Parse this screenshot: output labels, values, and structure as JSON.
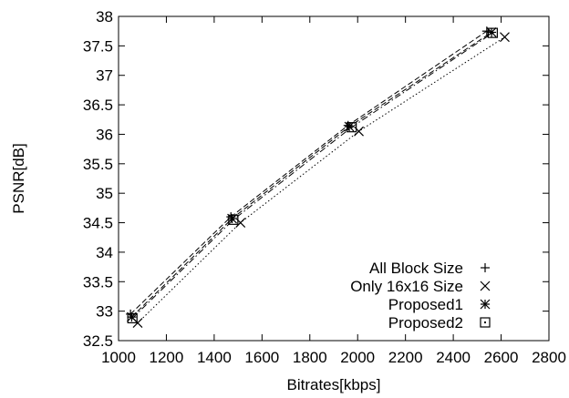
{
  "chart_data": {
    "type": "line",
    "title": "",
    "xlabel": "Bitrates[kbps]",
    "ylabel": "PSNR[dB]",
    "xlim": [
      1000,
      2800
    ],
    "ylim": [
      32.5,
      38
    ],
    "x_ticks": [
      1000,
      1200,
      1400,
      1600,
      1800,
      2000,
      2200,
      2400,
      2600,
      2800
    ],
    "y_ticks": [
      32.5,
      33,
      33.5,
      34,
      34.5,
      35,
      35.5,
      36,
      36.5,
      37,
      37.5,
      38
    ],
    "x_tick_labels": [
      "1000",
      "1200",
      "1400",
      "1600",
      "1800",
      "2000",
      "2200",
      "2400",
      "2600",
      "2800"
    ],
    "y_tick_labels": [
      "32.5",
      "33",
      "33.5",
      "34",
      "34.5",
      "35",
      "35.5",
      "36",
      "36.5",
      "37",
      "37.5",
      "38"
    ],
    "grid": false,
    "legend_position": "bottom-right",
    "series": [
      {
        "name": "All Block Size",
        "marker": "plus",
        "line_style": "dashed",
        "points": [
          [
            1050,
            32.95
          ],
          [
            1470,
            34.6
          ],
          [
            1960,
            36.15
          ],
          [
            2540,
            37.75
          ]
        ]
      },
      {
        "name": "Only 16x16 Size",
        "marker": "cross",
        "line_style": "dotted",
        "points": [
          [
            1080,
            32.8
          ],
          [
            1510,
            34.5
          ],
          [
            2005,
            36.05
          ],
          [
            2615,
            37.65
          ]
        ]
      },
      {
        "name": "Proposed1",
        "marker": "asterisk",
        "line_style": "dashed",
        "points": [
          [
            1055,
            32.9
          ],
          [
            1475,
            34.57
          ],
          [
            1965,
            36.13
          ],
          [
            2560,
            37.73
          ]
        ]
      },
      {
        "name": "Proposed2",
        "marker": "boxed-dot",
        "line_style": "dash-dot",
        "points": [
          [
            1058,
            32.88
          ],
          [
            1480,
            34.55
          ],
          [
            1975,
            36.12
          ],
          [
            2565,
            37.72
          ]
        ]
      }
    ],
    "colors": {
      "line": "#000000",
      "background": "#ffffff"
    }
  }
}
